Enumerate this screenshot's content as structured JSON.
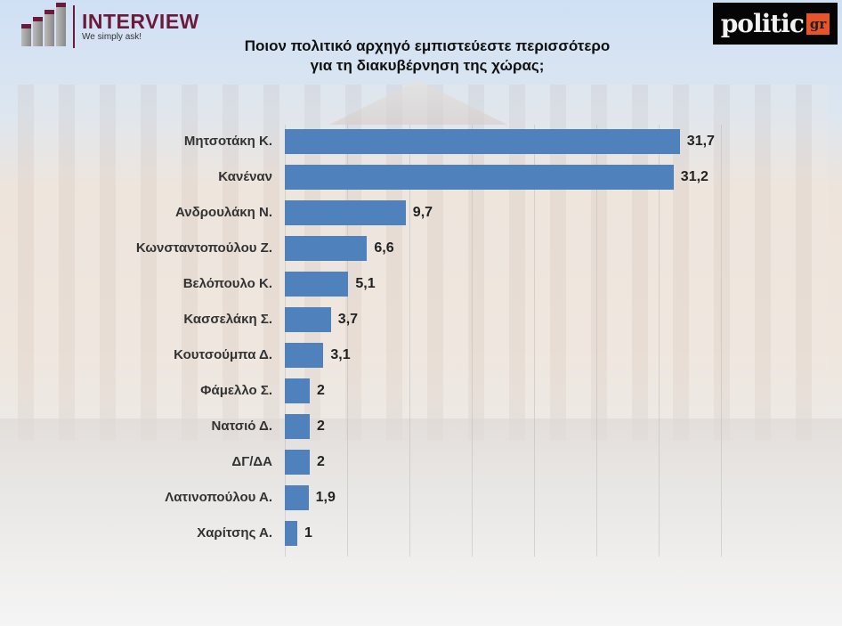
{
  "header": {
    "left_logo": {
      "name": "INTERVIEW",
      "tagline": "We simply ask!",
      "icon": "bar-steps-icon",
      "color": "#6b1a3a"
    },
    "right_logo": {
      "name": "politic",
      "suffix": "gr",
      "bg_color": "#050505",
      "suffix_color": "#e8542a"
    }
  },
  "title_line1": "Ποιον πολιτικό αρχηγό εμπιστεύεστε περισσότερο",
  "title_line2": "για τη διακυβέρνηση της χώρας;",
  "bar_color": "#4f81bd",
  "chart_data": {
    "type": "bar",
    "orientation": "horizontal",
    "title": "Ποιον πολιτικό αρχηγό εμπιστεύεστε περισσότερο για τη διακυβέρνηση της χώρας;",
    "xlabel": "",
    "ylabel": "",
    "xlim": [
      0,
      35
    ],
    "grid": true,
    "grid_step": 5,
    "legend": false,
    "data_labels": true,
    "categories": [
      "Μητσοτάκη Κ.",
      "Κανέναν",
      "Ανδρουλάκη Ν.",
      "Κωνσταντοπούλου Ζ.",
      "Βελόπουλο Κ.",
      "Κασσελάκη Σ.",
      "Κουτσούμπα Δ.",
      "Φάμελλο Σ.",
      "Νατσιό Δ.",
      "ΔΓ/ΔΑ",
      "Λατινοπούλου Α.",
      "Χαρίτσης Α."
    ],
    "values": [
      31.7,
      31.2,
      9.7,
      6.6,
      5.1,
      3.7,
      3.1,
      2,
      2,
      2,
      1.9,
      1
    ],
    "value_labels": [
      "31,7",
      "31,2",
      "9,7",
      "6,6",
      "5,1",
      "3,7",
      "3,1",
      "2",
      "2",
      "2",
      "1,9",
      "1"
    ]
  }
}
